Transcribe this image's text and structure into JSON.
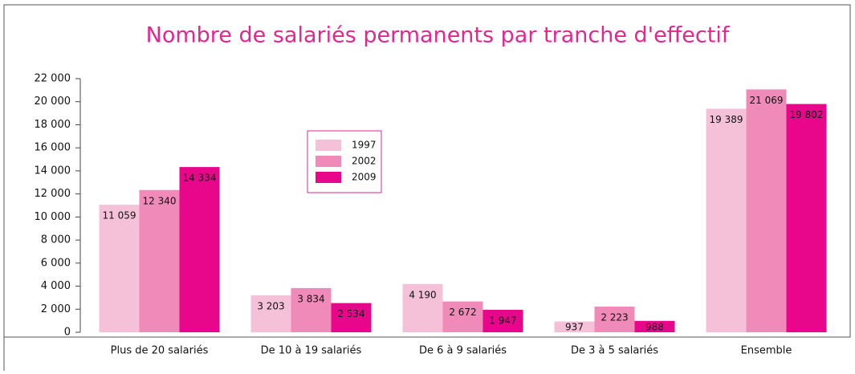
{
  "chart_data": {
    "type": "bar",
    "title": "Nombre de salariés permanents par tranche d'effectif",
    "categories": [
      "Plus de 20 salariés",
      "De 10 à 19 salariés",
      "De 6 à 9 salariés",
      "De 3 à 5 salariés",
      "Ensemble"
    ],
    "series": [
      {
        "name": "1997",
        "color": "#f5c1d9",
        "values": [
          11059,
          3203,
          4190,
          937,
          19389
        ],
        "value_labels": [
          "11 059",
          "3 203",
          "4 190",
          "937",
          "19 389"
        ]
      },
      {
        "name": "2002",
        "color": "#f08ab9",
        "values": [
          12340,
          3834,
          2672,
          2223,
          21069
        ],
        "value_labels": [
          "12 340",
          "3 834",
          "2 672",
          "2 223",
          "21 069"
        ]
      },
      {
        "name": "2009",
        "color": "#e8068b",
        "values": [
          14334,
          2534,
          1947,
          988,
          19802
        ],
        "value_labels": [
          "14 334",
          "2 534",
          "1 947",
          "988",
          "19 802"
        ]
      }
    ],
    "ylim": [
      0,
      22000
    ],
    "yticks": [
      0,
      {
        "value": 2000,
        "label": "2 000"
      },
      {
        "value": 4000,
        "label": "4 000"
      },
      {
        "value": 6000,
        "label": "6 000"
      },
      {
        "value": 8000,
        "label": "8 000"
      },
      {
        "value": 10000,
        "label": "10 000"
      },
      {
        "value": 12000,
        "label": "12 000"
      },
      {
        "value": 14000,
        "label": "14 000"
      },
      {
        "value": 16000,
        "label": "16 000"
      },
      {
        "value": 18000,
        "label": "18 000"
      },
      {
        "value": 20000,
        "label": "20 000"
      },
      {
        "value": 22000,
        "label": "22 000"
      }
    ],
    "grid": false
  }
}
